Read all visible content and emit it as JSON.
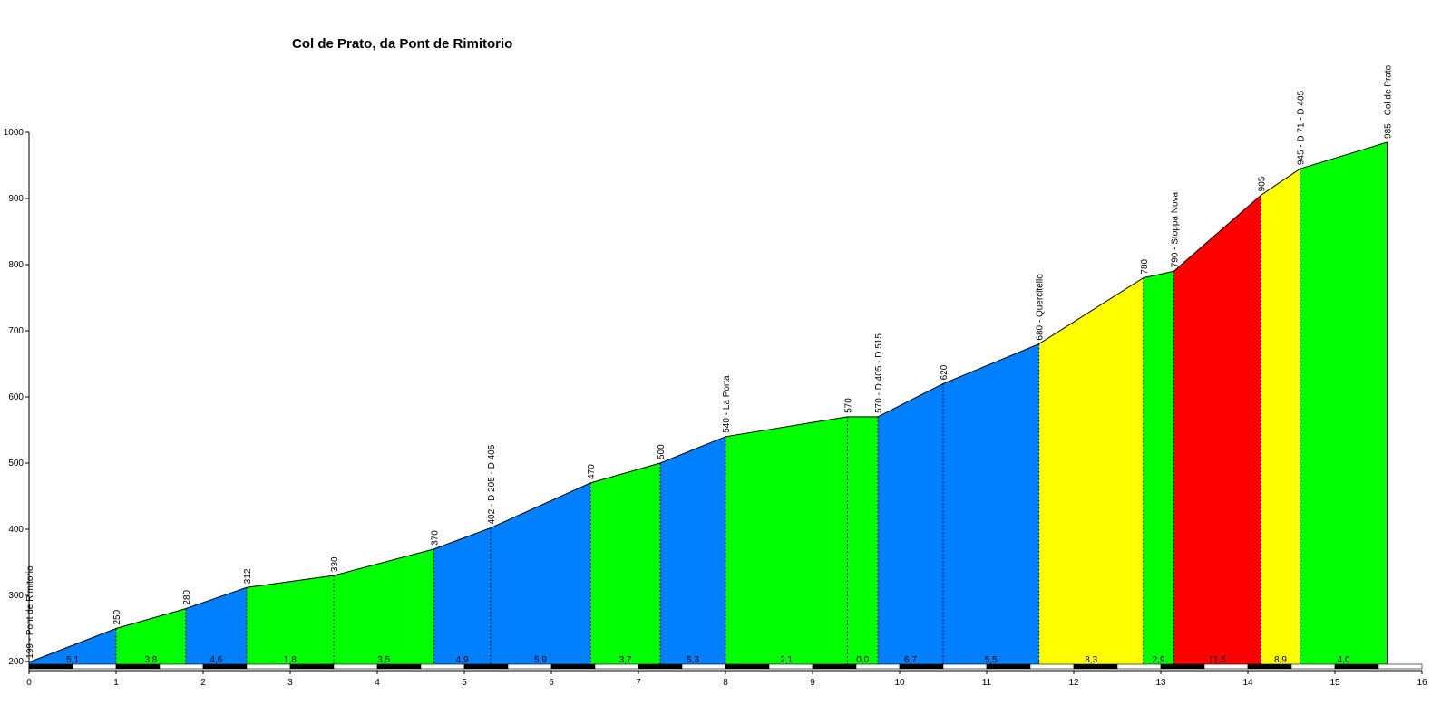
{
  "chart_data": {
    "type": "area",
    "title": "Col de Prato, da Pont de Rimitorio",
    "xlabel": "",
    "ylabel": "",
    "xlim": [
      0,
      16
    ],
    "ylim": [
      200,
      1000
    ],
    "x_ticks": [
      0,
      1,
      2,
      3,
      4,
      5,
      6,
      7,
      8,
      9,
      10,
      11,
      12,
      13,
      14,
      15,
      16
    ],
    "y_ticks": [
      200,
      300,
      400,
      500,
      600,
      700,
      800,
      900,
      1000
    ],
    "grid": false,
    "colors": {
      "blue": "#0080ff",
      "green": "#00ff00",
      "yellow": "#ffff00",
      "red": "#ff0000"
    },
    "points": [
      {
        "x": 0.0,
        "y": 199,
        "label": "199 - Pont de Rimitorio"
      },
      {
        "x": 1.0,
        "y": 250,
        "label": "250"
      },
      {
        "x": 1.8,
        "y": 280,
        "label": "280"
      },
      {
        "x": 2.5,
        "y": 312,
        "label": "312"
      },
      {
        "x": 3.5,
        "y": 330,
        "label": "330"
      },
      {
        "x": 4.65,
        "y": 370,
        "label": "370"
      },
      {
        "x": 5.3,
        "y": 402,
        "label": "402 - D 205 - D 405"
      },
      {
        "x": 6.45,
        "y": 470,
        "label": "470"
      },
      {
        "x": 7.25,
        "y": 500,
        "label": "500"
      },
      {
        "x": 8.0,
        "y": 540,
        "label": "540 - La Porta"
      },
      {
        "x": 9.4,
        "y": 570,
        "label": "570"
      },
      {
        "x": 9.75,
        "y": 570,
        "label": "570 - D 405 - D 515"
      },
      {
        "x": 10.5,
        "y": 620,
        "label": "620"
      },
      {
        "x": 11.6,
        "y": 680,
        "label": "680 - Quercitello"
      },
      {
        "x": 12.8,
        "y": 780,
        "label": "780"
      },
      {
        "x": 13.15,
        "y": 790,
        "label": "790 - Stoppa Nova"
      },
      {
        "x": 14.15,
        "y": 905,
        "label": "905"
      },
      {
        "x": 14.6,
        "y": 945,
        "label": "945 - D 71 - D 405"
      },
      {
        "x": 15.6,
        "y": 985,
        "label": "985 - Col de Prato"
      }
    ],
    "segments": [
      {
        "gradient": "5,1",
        "color": "blue"
      },
      {
        "gradient": "3,8",
        "color": "green"
      },
      {
        "gradient": "4,6",
        "color": "blue"
      },
      {
        "gradient": "1,8",
        "color": "green"
      },
      {
        "gradient": "3,5",
        "color": "green"
      },
      {
        "gradient": "4,9",
        "color": "blue"
      },
      {
        "gradient": "5,9",
        "color": "blue"
      },
      {
        "gradient": "3,7",
        "color": "green"
      },
      {
        "gradient": "5,3",
        "color": "blue"
      },
      {
        "gradient": "2,1",
        "color": "green"
      },
      {
        "gradient": "0,0",
        "color": "green"
      },
      {
        "gradient": "6,7",
        "color": "blue"
      },
      {
        "gradient": "5,5",
        "color": "blue"
      },
      {
        "gradient": "8,3",
        "color": "yellow"
      },
      {
        "gradient": "2,9",
        "color": "green"
      },
      {
        "gradient": "11,5",
        "color": "red"
      },
      {
        "gradient": "8,9",
        "color": "yellow"
      },
      {
        "gradient": "4,0",
        "color": "green"
      }
    ]
  }
}
